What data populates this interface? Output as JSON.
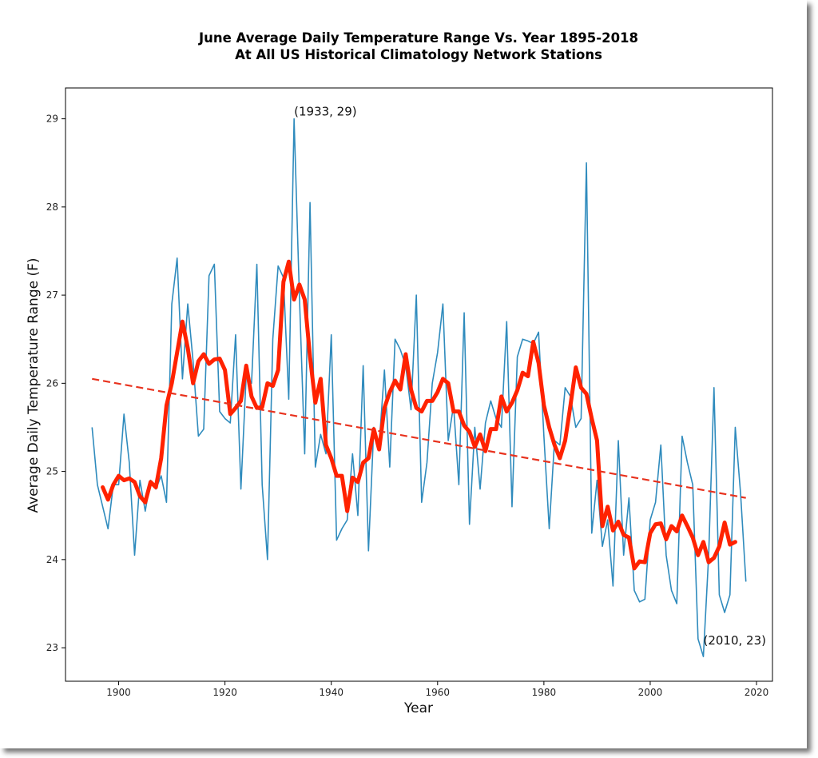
{
  "chart_data": {
    "type": "line",
    "title_line1": "June Average Daily Temperature Range Vs. Year 1895-2018",
    "title_line2": "At All US Historical Climatology Network Stations",
    "xlabel": "Year",
    "ylabel": "Average Daily Temperature Range (F)",
    "xlim": [
      1890,
      2023
    ],
    "ylim": [
      22.62,
      29.35
    ],
    "x_ticks": [
      1900,
      1920,
      1940,
      1960,
      1980,
      2000,
      2020
    ],
    "y_ticks": [
      23,
      24,
      25,
      26,
      27,
      28,
      29
    ],
    "grid": false,
    "colors": {
      "annual": "#2f8bbd",
      "smoothed": "#ff2200",
      "trend": "#e8321e"
    },
    "annotations": [
      {
        "text": "(1933, 29)",
        "x": 1933,
        "y": 29
      },
      {
        "text": "(2010, 23)",
        "x": 2010,
        "y": 23
      }
    ],
    "series": [
      {
        "style": "thin-line",
        "x": [
          1895,
          1896,
          1897,
          1898,
          1899,
          1900,
          1901,
          1902,
          1903,
          1904,
          1905,
          1906,
          1907,
          1908,
          1909,
          1910,
          1911,
          1912,
          1913,
          1914,
          1915,
          1916,
          1917,
          1918,
          1919,
          1920,
          1921,
          1922,
          1923,
          1924,
          1925,
          1926,
          1927,
          1928,
          1929,
          1930,
          1931,
          1932,
          1933,
          1934,
          1935,
          1936,
          1937,
          1938,
          1939,
          1940,
          1941,
          1942,
          1943,
          1944,
          1945,
          1946,
          1947,
          1948,
          1949,
          1950,
          1951,
          1952,
          1953,
          1954,
          1955,
          1956,
          1957,
          1958,
          1959,
          1960,
          1961,
          1962,
          1963,
          1964,
          1965,
          1966,
          1967,
          1968,
          1969,
          1970,
          1971,
          1972,
          1973,
          1974,
          1975,
          1976,
          1977,
          1978,
          1979,
          1980,
          1981,
          1982,
          1983,
          1984,
          1985,
          1986,
          1987,
          1988,
          1989,
          1990,
          1991,
          1992,
          1993,
          1994,
          1995,
          1996,
          1997,
          1998,
          1999,
          2000,
          2001,
          2002,
          2003,
          2004,
          2005,
          2006,
          2007,
          2008,
          2009,
          2010,
          2011,
          2012,
          2013,
          2014,
          2015,
          2016,
          2017,
          2018
        ],
        "values": [
          25.5,
          24.85,
          24.6,
          24.35,
          24.85,
          24.85,
          25.65,
          25.1,
          24.05,
          24.9,
          24.55,
          24.9,
          24.8,
          24.95,
          24.65,
          26.9,
          27.42,
          26.05,
          26.9,
          26.25,
          25.4,
          25.48,
          27.22,
          27.35,
          25.68,
          25.6,
          25.55,
          26.55,
          24.8,
          26.1,
          26.0,
          27.35,
          24.85,
          24.0,
          26.5,
          27.33,
          27.2,
          25.82,
          29.0,
          27.0,
          25.2,
          28.05,
          25.05,
          25.42,
          25.2,
          26.55,
          24.22,
          24.35,
          24.45,
          25.2,
          24.5,
          26.2,
          24.1,
          25.5,
          25.3,
          26.15,
          25.05,
          26.5,
          26.38,
          26.2,
          25.7,
          27.0,
          24.65,
          25.1,
          26.0,
          26.35,
          26.9,
          25.35,
          25.75,
          24.85,
          26.8,
          24.4,
          25.5,
          24.8,
          25.55,
          25.8,
          25.6,
          25.5,
          26.7,
          24.6,
          26.3,
          26.5,
          26.48,
          26.45,
          26.58,
          25.4,
          24.35,
          25.35,
          25.3,
          25.95,
          25.85,
          25.5,
          25.6,
          28.5,
          24.3,
          24.9,
          24.15,
          24.45,
          23.7,
          25.35,
          24.05,
          24.7,
          23.65,
          23.52,
          23.55,
          24.45,
          24.65,
          25.3,
          24.05,
          23.65,
          23.5,
          25.4,
          25.1,
          24.85,
          23.1,
          22.9,
          24.05,
          25.95,
          23.6,
          23.4,
          23.6,
          25.5,
          24.75,
          23.75
        ]
      },
      {
        "style": "smoothed-thick-line",
        "x": [
          1897,
          1898,
          1899,
          1900,
          1901,
          1902,
          1903,
          1904,
          1905,
          1906,
          1907,
          1908,
          1909,
          1910,
          1911,
          1912,
          1913,
          1914,
          1915,
          1916,
          1917,
          1918,
          1919,
          1920,
          1921,
          1922,
          1923,
          1924,
          1925,
          1926,
          1927,
          1928,
          1929,
          1930,
          1931,
          1932,
          1933,
          1934,
          1935,
          1936,
          1937,
          1938,
          1939,
          1940,
          1941,
          1942,
          1943,
          1944,
          1945,
          1946,
          1947,
          1948,
          1949,
          1950,
          1951,
          1952,
          1953,
          1954,
          1955,
          1956,
          1957,
          1958,
          1959,
          1960,
          1961,
          1962,
          1963,
          1964,
          1965,
          1966,
          1967,
          1968,
          1969,
          1970,
          1971,
          1972,
          1973,
          1974,
          1975,
          1976,
          1977,
          1978,
          1979,
          1980,
          1981,
          1982,
          1983,
          1984,
          1985,
          1986,
          1987,
          1988,
          1989,
          1990,
          1991,
          1992,
          1993,
          1994,
          1995,
          1996,
          1997,
          1998,
          1999,
          2000,
          2001,
          2002,
          2003,
          2004,
          2005,
          2006,
          2007,
          2008,
          2009,
          2010,
          2011,
          2012,
          2013,
          2014,
          2015,
          2016
        ],
        "values": [
          24.82,
          24.68,
          24.85,
          24.95,
          24.9,
          24.92,
          24.88,
          24.72,
          24.65,
          24.88,
          24.82,
          25.15,
          25.75,
          26.0,
          26.35,
          26.7,
          26.4,
          26.0,
          26.25,
          26.33,
          26.22,
          26.27,
          26.28,
          26.15,
          25.65,
          25.72,
          25.8,
          26.2,
          25.85,
          25.72,
          25.73,
          26.0,
          25.97,
          26.15,
          27.15,
          27.38,
          26.95,
          27.12,
          26.95,
          26.3,
          25.78,
          26.05,
          25.3,
          25.15,
          24.95,
          24.95,
          24.55,
          24.93,
          24.88,
          25.1,
          25.15,
          25.48,
          25.25,
          25.72,
          25.9,
          26.03,
          25.93,
          26.33,
          25.93,
          25.72,
          25.68,
          25.8,
          25.8,
          25.9,
          26.05,
          26.0,
          25.68,
          25.68,
          25.52,
          25.45,
          25.28,
          25.42,
          25.23,
          25.48,
          25.48,
          25.85,
          25.68,
          25.78,
          25.92,
          26.12,
          26.08,
          26.47,
          26.23,
          25.75,
          25.5,
          25.3,
          25.15,
          25.35,
          25.75,
          26.18,
          25.95,
          25.88,
          25.6,
          25.35,
          24.38,
          24.6,
          24.33,
          24.43,
          24.28,
          24.25,
          23.9,
          23.98,
          23.97,
          24.3,
          24.4,
          24.41,
          24.23,
          24.38,
          24.32,
          24.5,
          24.38,
          24.25,
          24.05,
          24.2,
          23.97,
          24.02,
          24.15,
          24.42,
          24.17,
          24.2
        ]
      },
      {
        "style": "dashed-trend",
        "x": [
          1895,
          2018
        ],
        "values": [
          26.05,
          24.7
        ]
      }
    ]
  }
}
